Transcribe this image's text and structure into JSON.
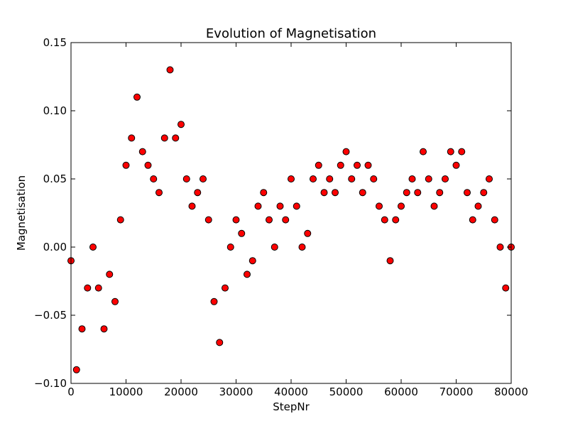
{
  "chart_data": {
    "type": "scatter",
    "title": "Evolution of Magnetisation",
    "xlabel": "StepNr",
    "ylabel": "Magnetisation",
    "x": [
      0,
      1000,
      2000,
      3000,
      4000,
      5000,
      6000,
      7000,
      8000,
      9000,
      10000,
      11000,
      12000,
      13000,
      14000,
      15000,
      16000,
      17000,
      18000,
      19000,
      20000,
      21000,
      22000,
      23000,
      24000,
      25000,
      26000,
      27000,
      28000,
      29000,
      30000,
      31000,
      32000,
      33000,
      34000,
      35000,
      36000,
      37000,
      38000,
      39000,
      40000,
      41000,
      42000,
      43000,
      44000,
      45000,
      46000,
      47000,
      48000,
      49000,
      50000,
      51000,
      52000,
      53000,
      54000,
      55000,
      56000,
      57000,
      58000,
      59000,
      60000,
      61000,
      62000,
      63000,
      64000,
      65000,
      66000,
      67000,
      68000,
      69000,
      70000,
      71000,
      72000,
      73000,
      74000,
      75000,
      76000,
      77000,
      78000,
      79000,
      80000
    ],
    "series": [
      {
        "color": "#ff0000",
        "values": [
          -0.01,
          -0.09,
          -0.06,
          -0.03,
          0.0,
          -0.03,
          -0.06,
          -0.02,
          -0.04,
          0.02,
          0.06,
          0.08,
          0.11,
          0.07,
          0.06,
          0.05,
          0.04,
          0.08,
          0.13,
          0.08,
          0.09,
          0.05,
          0.03,
          0.04,
          0.05,
          0.02,
          -0.04,
          -0.07,
          -0.03,
          0.0,
          0.02,
          0.01,
          -0.02,
          -0.01,
          0.03,
          0.04,
          0.02,
          0.0,
          0.03,
          0.02,
          0.05,
          0.03,
          0.0,
          0.01,
          0.05,
          0.06,
          0.04,
          0.05,
          0.04,
          0.06,
          0.07,
          0.05,
          0.06,
          0.04,
          0.06,
          0.05,
          0.03,
          0.02,
          -0.01,
          0.02,
          0.03,
          0.04,
          0.05,
          0.04,
          0.07,
          0.05,
          0.03,
          0.04,
          0.05,
          0.07,
          0.06,
          0.07,
          0.04,
          0.02,
          0.03,
          0.04,
          0.05,
          0.02,
          0.0,
          -0.03,
          0.0
        ]
      }
    ],
    "xlim": [
      0,
      80000
    ],
    "ylim": [
      -0.1,
      0.15
    ],
    "xticks": [
      0,
      10000,
      20000,
      30000,
      40000,
      50000,
      60000,
      70000,
      80000
    ],
    "yticks": [
      {
        "value": -0.1,
        "label": "−0.10"
      },
      {
        "value": -0.05,
        "label": "−0.05"
      },
      {
        "value": 0,
        "label": "0.00"
      },
      {
        "value": 0.05,
        "label": "0.05"
      },
      {
        "value": 0.1,
        "label": "0.10"
      },
      {
        "value": 0.15,
        "label": "0.15"
      }
    ]
  }
}
